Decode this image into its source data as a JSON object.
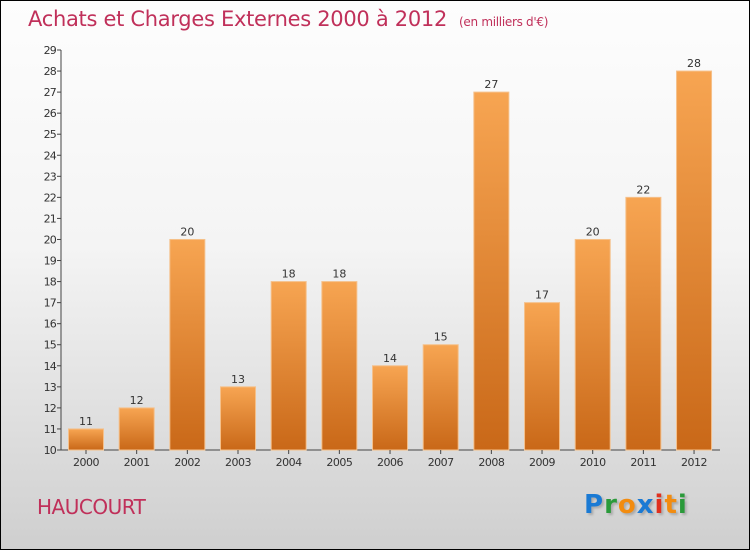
{
  "chart_data": {
    "type": "bar",
    "title": "Achats et Charges Externes 2000 à 2012",
    "unit": "(en milliers d'€)",
    "categories": [
      "2000",
      "2001",
      "2002",
      "2003",
      "2004",
      "2005",
      "2006",
      "2007",
      "2008",
      "2009",
      "2010",
      "2011",
      "2012"
    ],
    "values": [
      11,
      12,
      20,
      13,
      18,
      18,
      14,
      15,
      27,
      17,
      20,
      22,
      28
    ],
    "ylim": [
      10,
      29
    ],
    "yticks": [
      10,
      11,
      12,
      13,
      14,
      15,
      16,
      17,
      18,
      19,
      20,
      21,
      22,
      23,
      24,
      25,
      26,
      27,
      28,
      29
    ],
    "xlabel": "",
    "ylabel": "",
    "grid": false,
    "bar_color": "#e8842e"
  },
  "commune": "HAUCOURT",
  "logo": {
    "text": "Proxiti",
    "letters": [
      {
        "c": "P",
        "color": "#1a7ad4"
      },
      {
        "c": "r",
        "color": "#2a9a3a"
      },
      {
        "c": "o",
        "color": "#f28c10"
      },
      {
        "c": "x",
        "color": "#1a7ad4"
      },
      {
        "c": "i",
        "color": "#e0301e"
      },
      {
        "c": "t",
        "color": "#f28c10"
      },
      {
        "c": "i",
        "color": "#2a9a3a"
      }
    ]
  }
}
